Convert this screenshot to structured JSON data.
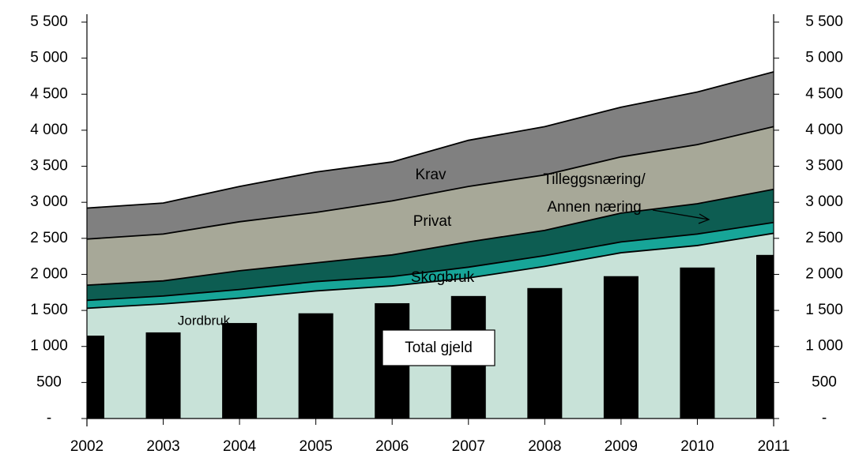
{
  "chart_data": {
    "type": "stacked_area_bar",
    "categories": [
      "2002",
      "2003",
      "2004",
      "2005",
      "2006",
      "2007",
      "2008",
      "2009",
      "2010",
      "2011"
    ],
    "series": [
      {
        "name": "Jordbruk",
        "color": "#c8e2d8",
        "values": [
          1530,
          1590,
          1670,
          1770,
          1840,
          1950,
          2110,
          2300,
          2400,
          2570
        ]
      },
      {
        "name": "Skogbruk",
        "color": "#17a598",
        "values": [
          110,
          110,
          120,
          130,
          130,
          150,
          150,
          150,
          160,
          150
        ]
      },
      {
        "name": [
          "Tilleggsnæring/",
          "Annen næring"
        ],
        "color": "#0d5d52",
        "values": [
          210,
          210,
          260,
          260,
          300,
          350,
          350,
          400,
          420,
          460
        ]
      },
      {
        "name": "Privat",
        "color": "#a7a898",
        "values": [
          640,
          650,
          680,
          700,
          750,
          770,
          770,
          780,
          820,
          870
        ]
      },
      {
        "name": "Krav",
        "color": "#808080",
        "values": [
          430,
          430,
          490,
          560,
          540,
          640,
          670,
          690,
          730,
          760
        ]
      }
    ],
    "bars": {
      "name": "Total gjeld",
      "color": "#000000",
      "values": [
        1150,
        1195,
        1325,
        1460,
        1600,
        1700,
        1810,
        1975,
        2095,
        2270
      ]
    },
    "ylim": [
      0,
      5500
    ],
    "yticks": [
      {
        "value": 0,
        "label": "-"
      },
      500,
      {
        "value": 1000,
        "label": "1 000"
      },
      {
        "value": 1500,
        "label": "1 500"
      },
      {
        "value": 2000,
        "label": "2 000"
      },
      {
        "value": 2500,
        "label": "2 500"
      },
      {
        "value": 3000,
        "label": "3 000"
      },
      {
        "value": 3500,
        "label": "3 500"
      },
      {
        "value": 4000,
        "label": "4 000"
      },
      {
        "value": 4500,
        "label": "4 500"
      },
      {
        "value": 5000,
        "label": "5 000"
      },
      {
        "value": 5500,
        "label": "5 500"
      }
    ],
    "y2lim": [
      0,
      5500
    ],
    "y2ticks": [
      {
        "value": 0,
        "label": "-"
      },
      500,
      {
        "value": 1000,
        "label": "1 000"
      },
      {
        "value": 1500,
        "label": "1 500"
      },
      {
        "value": 2000,
        "label": "2 000"
      },
      {
        "value": 2500,
        "label": "2 500"
      },
      {
        "value": 3000,
        "label": "3 000"
      },
      {
        "value": 3500,
        "label": "3 500"
      },
      {
        "value": 4000,
        "label": "4 000"
      },
      {
        "value": 4500,
        "label": "4 500"
      },
      {
        "value": 5000,
        "label": "5 000"
      },
      {
        "value": 5500,
        "label": "5 500"
      }
    ]
  }
}
